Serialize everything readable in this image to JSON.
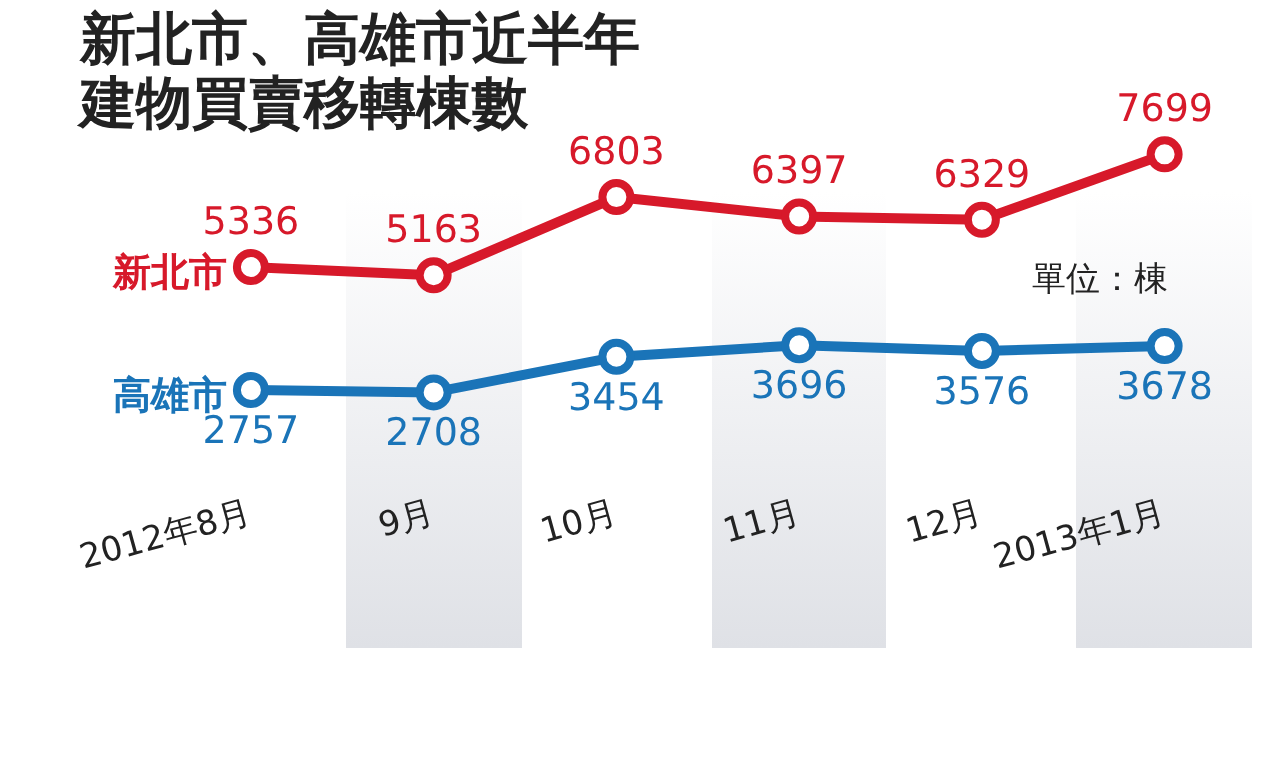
{
  "chart_data": {
    "type": "line",
    "title": "新北市、高雄市近半年建物買賣移轉棟數",
    "categories": [
      "2012年8月",
      "9月",
      "10月",
      "11月",
      "12月",
      "2013年1月"
    ],
    "series": [
      {
        "name": "新北市",
        "color": "#d7192a",
        "values": [
          5336,
          5163,
          6803,
          6397,
          6329,
          7699
        ]
      },
      {
        "name": "高雄市",
        "color": "#1a74b8",
        "values": [
          2757,
          2708,
          3454,
          3696,
          3576,
          3678
        ]
      }
    ],
    "annotations": [
      "單位：棟"
    ],
    "data_labels": true,
    "marker": "circle",
    "grid": false,
    "legend": false,
    "tick_labels": "x"
  }
}
